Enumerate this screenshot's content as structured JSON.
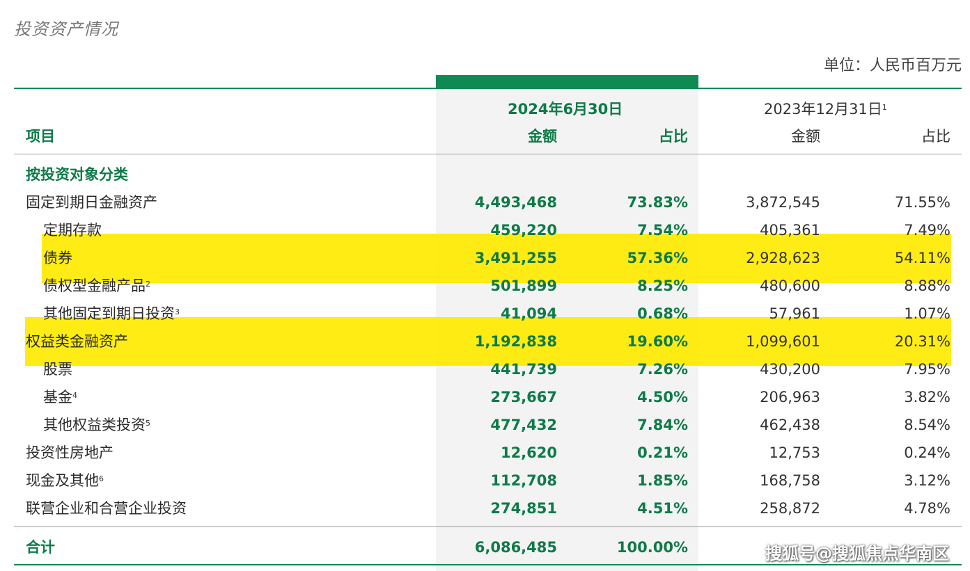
{
  "title": "投资资产情况",
  "unit": "单位：人民币百万元",
  "colors": {
    "accent": "#0e8a52",
    "highlight": "#ffea00"
  },
  "header": {
    "item_label": "项目",
    "period_current": "2024年6月30日",
    "period_prior": "2023年12月31日",
    "period_prior_note": "1",
    "amount": "金额",
    "ratio": "占比"
  },
  "section_label": "按投资对象分类",
  "rows": [
    {
      "label": "固定到期日金融资产",
      "note": "",
      "cur_amt": "4,493,468",
      "cur_pct": "73.83%",
      "pri_amt": "3,872,545",
      "pri_pct": "71.55%"
    },
    {
      "label": "定期存款",
      "note": "",
      "cur_amt": "459,220",
      "cur_pct": "7.54%",
      "pri_amt": "405,361",
      "pri_pct": "7.49%"
    },
    {
      "label": "债券",
      "note": "",
      "cur_amt": "3,491,255",
      "cur_pct": "57.36%",
      "pri_amt": "2,928,623",
      "pri_pct": "54.11%"
    },
    {
      "label": "债权型金融产品",
      "note": "2",
      "cur_amt": "501,899",
      "cur_pct": "8.25%",
      "pri_amt": "480,600",
      "pri_pct": "8.88%"
    },
    {
      "label": "其他固定到期日投资",
      "note": "3",
      "cur_amt": "41,094",
      "cur_pct": "0.68%",
      "pri_amt": "57,961",
      "pri_pct": "1.07%"
    },
    {
      "label": "权益类金融资产",
      "note": "",
      "cur_amt": "1,192,838",
      "cur_pct": "19.60%",
      "pri_amt": "1,099,601",
      "pri_pct": "20.31%"
    },
    {
      "label": "股票",
      "note": "",
      "cur_amt": "441,739",
      "cur_pct": "7.26%",
      "pri_amt": "430,200",
      "pri_pct": "7.95%"
    },
    {
      "label": "基金",
      "note": "4",
      "cur_amt": "273,667",
      "cur_pct": "4.50%",
      "pri_amt": "206,963",
      "pri_pct": "3.82%"
    },
    {
      "label": "其他权益类投资",
      "note": "5",
      "cur_amt": "477,432",
      "cur_pct": "7.84%",
      "pri_amt": "462,438",
      "pri_pct": "8.54%"
    },
    {
      "label": "投资性房地产",
      "note": "",
      "cur_amt": "12,620",
      "cur_pct": "0.21%",
      "pri_amt": "12,753",
      "pri_pct": "0.24%"
    },
    {
      "label": "现金及其他",
      "note": "6",
      "cur_amt": "112,708",
      "cur_pct": "1.85%",
      "pri_amt": "168,758",
      "pri_pct": "3.12%"
    },
    {
      "label": "联营企业和合营企业投资",
      "note": "",
      "cur_amt": "274,851",
      "cur_pct": "4.51%",
      "pri_amt": "258,872",
      "pri_pct": "4.78%"
    }
  ],
  "total": {
    "label": "合计",
    "cur_amt": "6,086,485",
    "cur_pct": "100.00%"
  },
  "watermark": "搜狐号@搜狐焦点华南区"
}
